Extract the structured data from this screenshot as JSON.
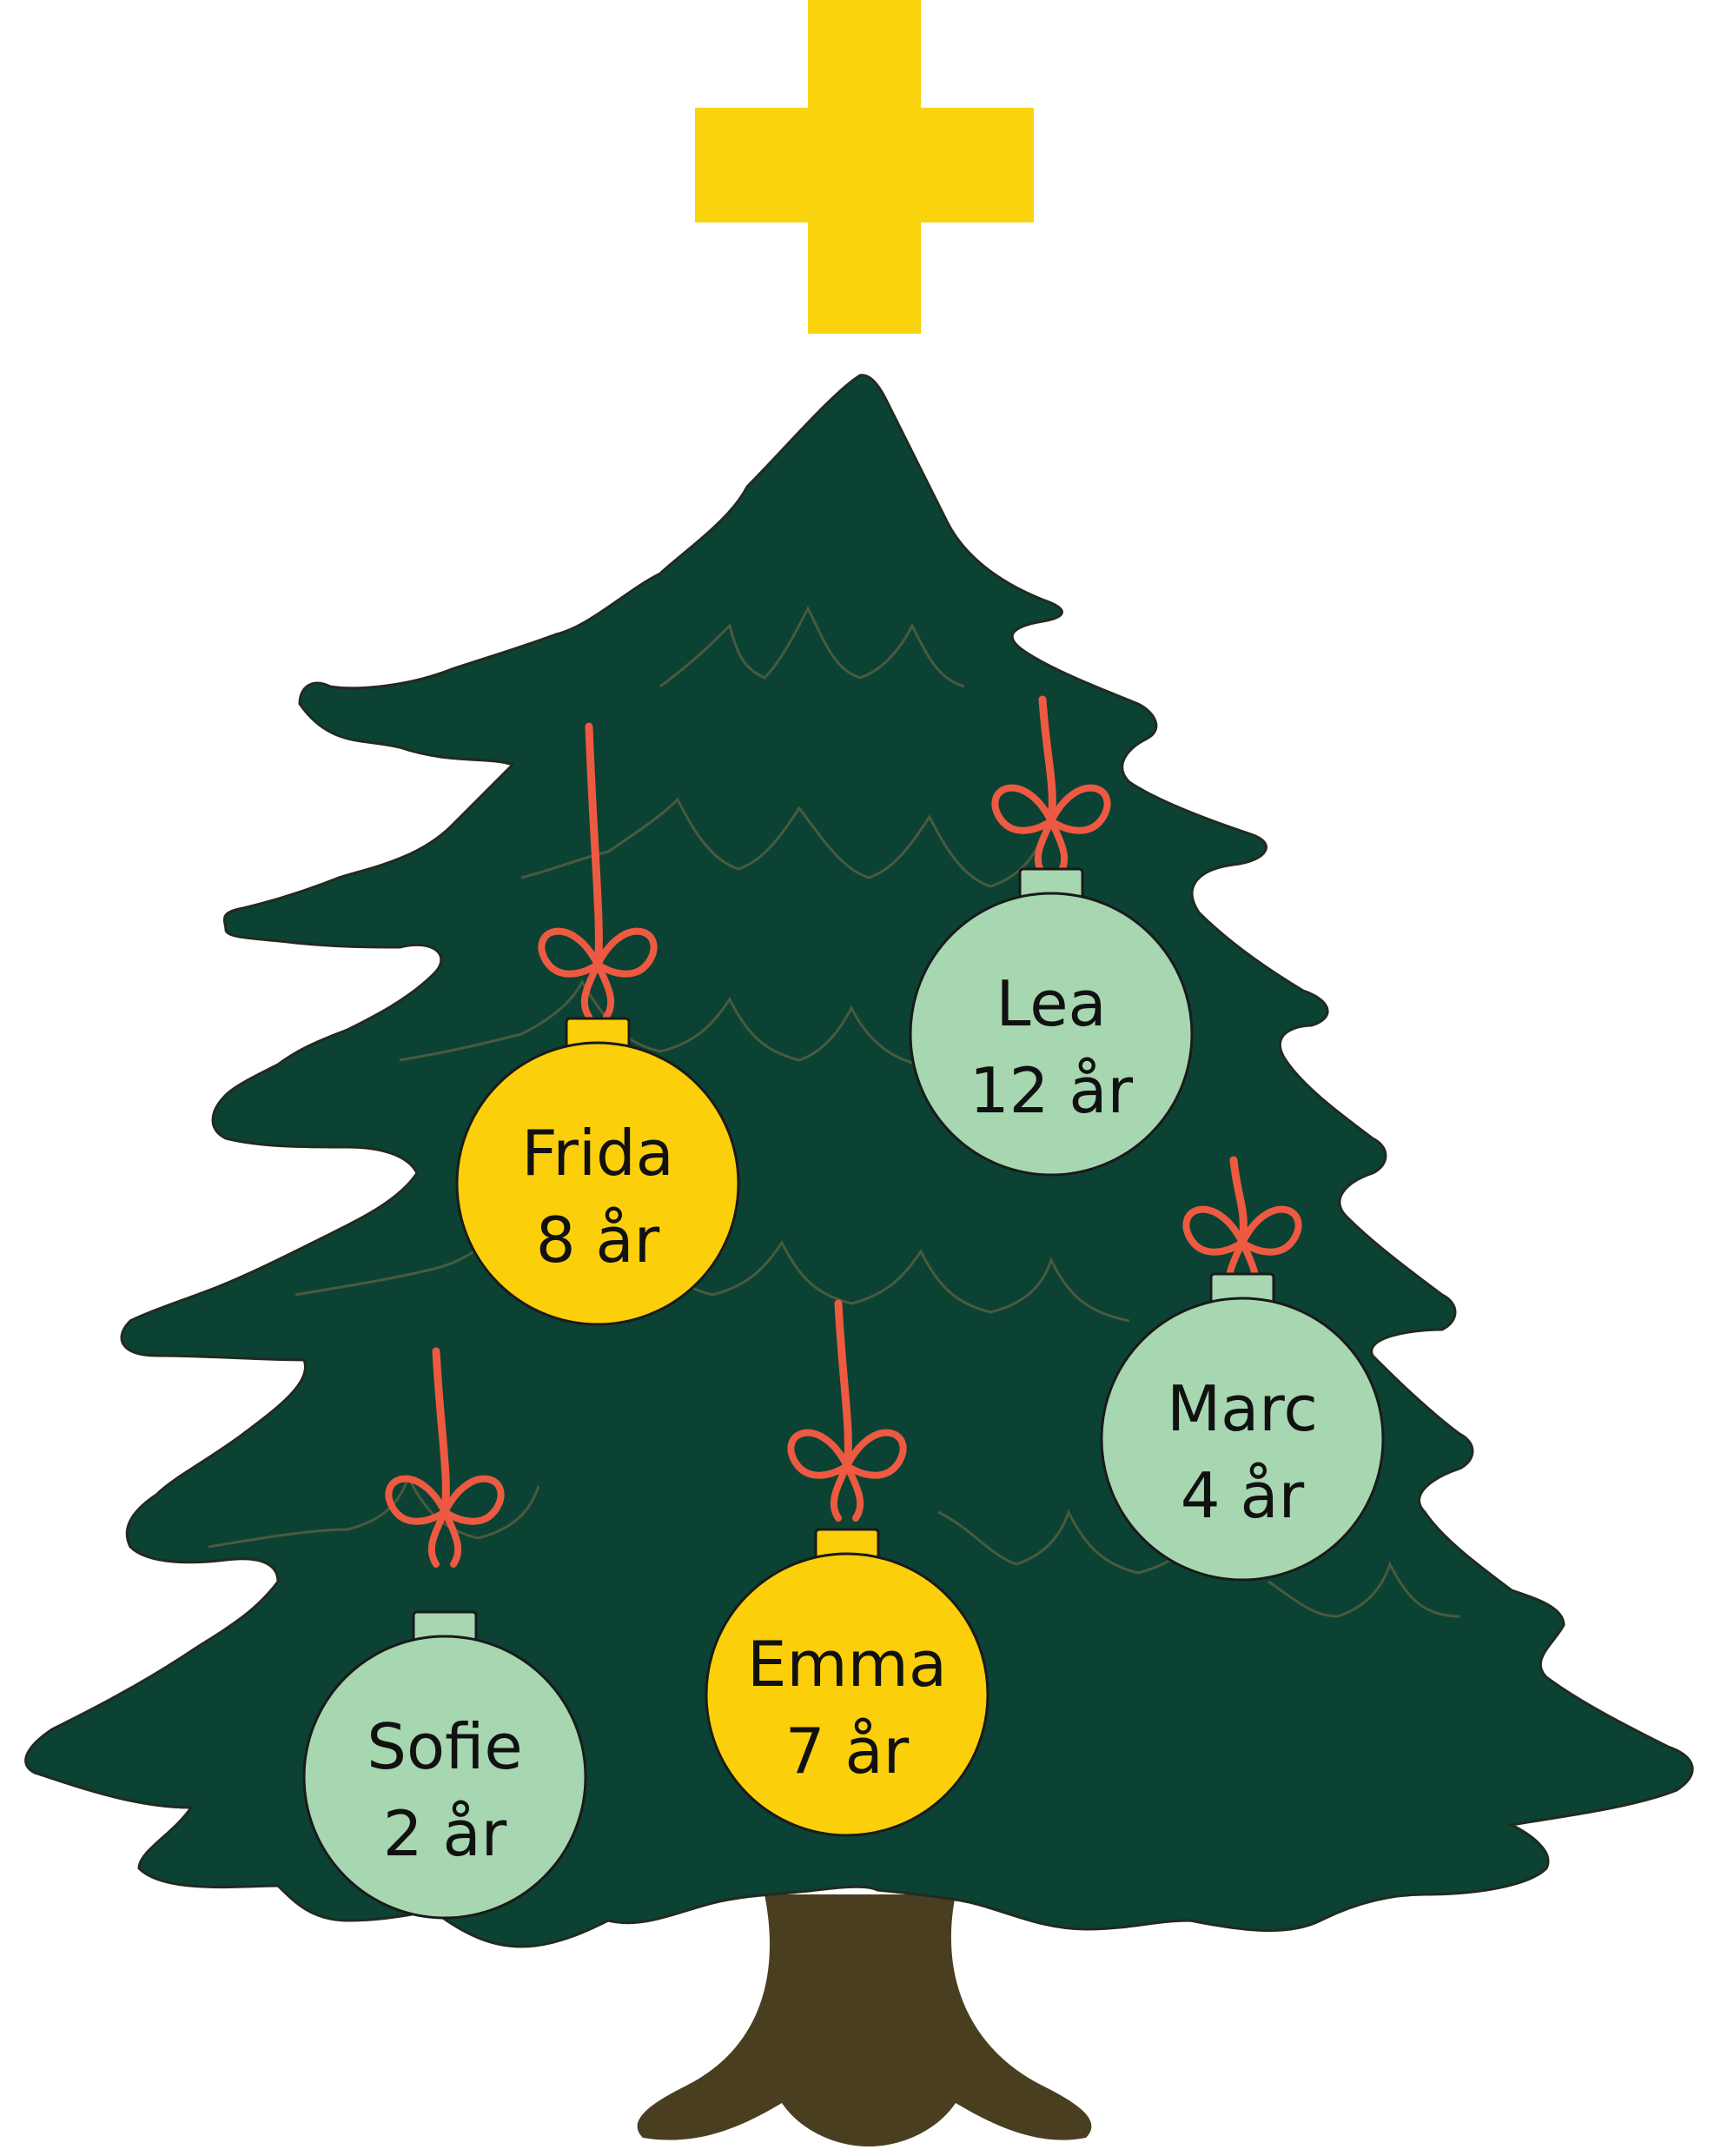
{
  "colors": {
    "background": "#ffffff",
    "star": "#f8d30e",
    "tree": "#0b4233",
    "tree_outline": "#222a20",
    "branch_line": "#4a5a3e",
    "trunk": "#4a3e20",
    "ribbon": "#ee5a41",
    "ornament_yellow": "#fccf0b",
    "ornament_mint": "#a6d7b0",
    "cap_outline": "#1a1a1a"
  },
  "icons": {
    "star": "cross-star-icon",
    "tree": "christmas-tree-icon",
    "ornament": "bauble-icon",
    "bow": "ribbon-bow-icon"
  },
  "ornaments": [
    {
      "name": "Frida",
      "age": "8 år",
      "color": "yellow"
    },
    {
      "name": "Lea",
      "age": "12 år",
      "color": "mint"
    },
    {
      "name": "Marc",
      "age": "4 år",
      "color": "mint"
    },
    {
      "name": "Emma",
      "age": "7 år",
      "color": "yellow"
    },
    {
      "name": "Sofie",
      "age": "2 år",
      "color": "mint"
    }
  ]
}
